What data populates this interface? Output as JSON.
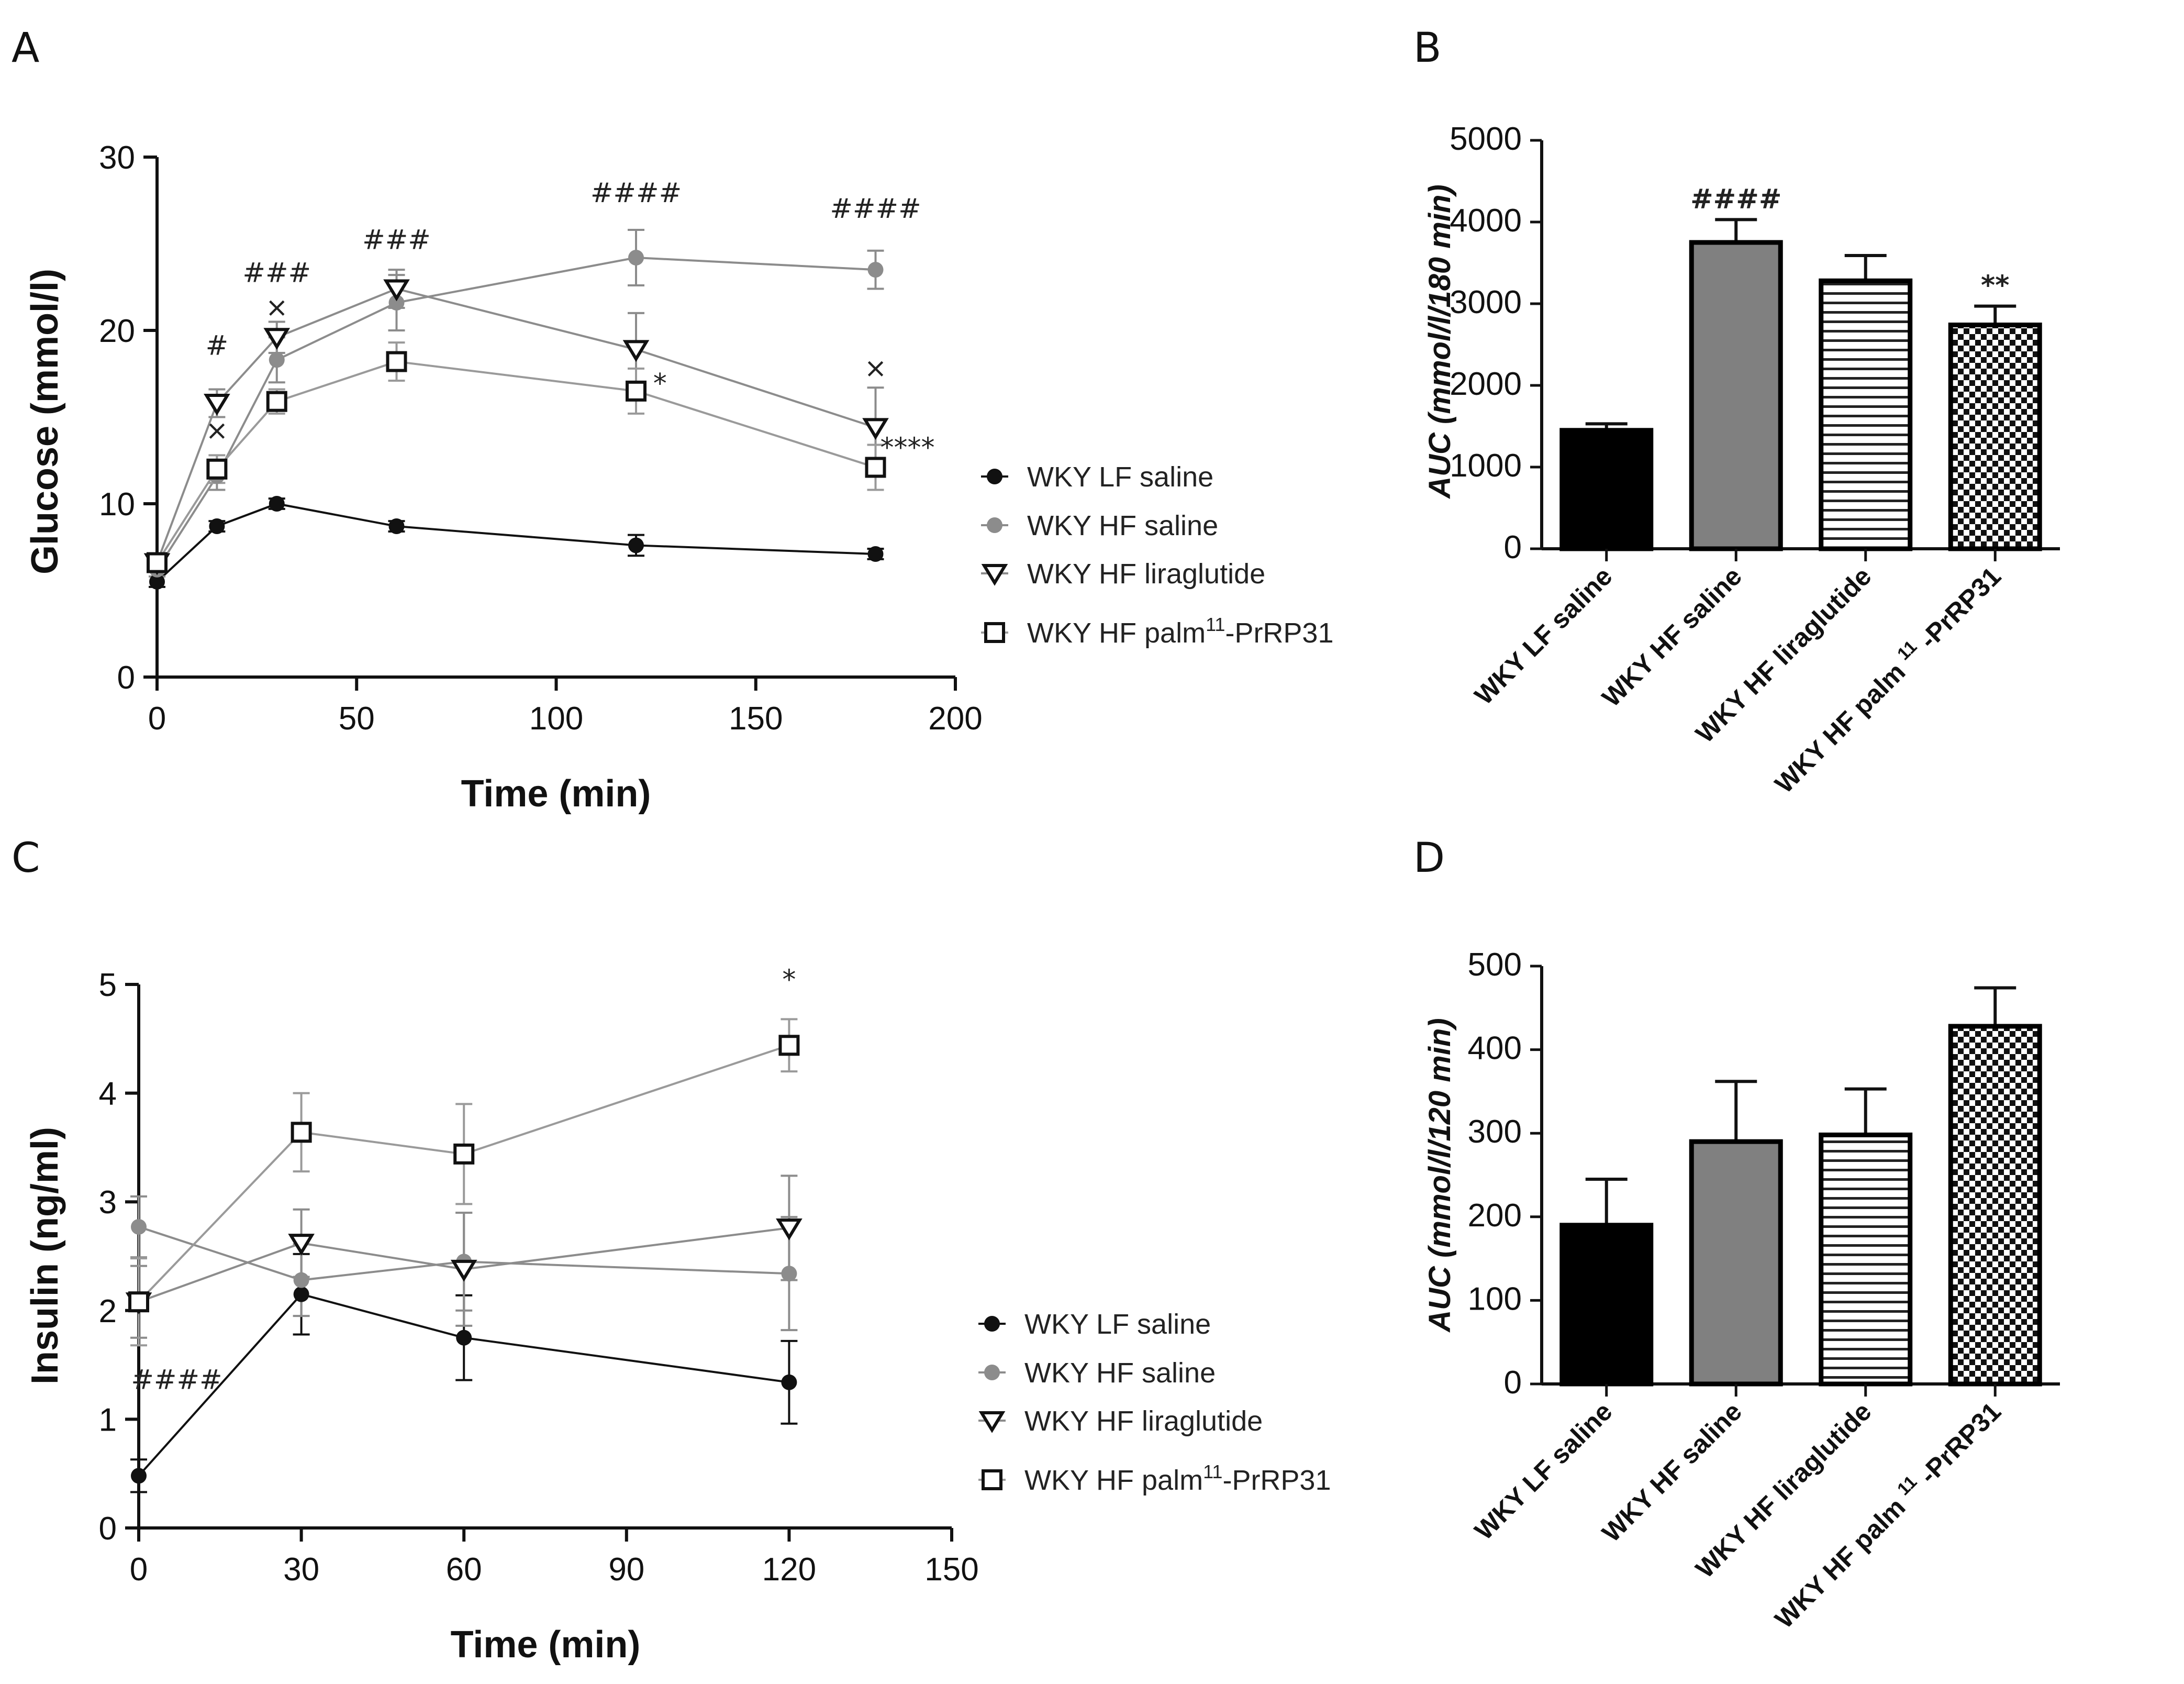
{
  "figure": {
    "panels": {
      "A": "A",
      "B": "B",
      "C": "C",
      "D": "D"
    }
  },
  "legend": {
    "lf_saline": "WKY LF saline",
    "hf_saline": "WKY HF saline",
    "hf_liraglutide": "WKY HF liraglutide",
    "hf_palm_prefix": "WKY HF palm",
    "hf_palm_sup": "11",
    "hf_palm_suffix": "-PrRP31"
  },
  "chart_data": [
    {
      "id": "A",
      "type": "line",
      "xlabel": "Time (min)",
      "ylabel": "Glucose (mmol/l)",
      "xlim": [
        0,
        200
      ],
      "ylim": [
        0,
        30
      ],
      "xticks": [
        0,
        50,
        100,
        150,
        200
      ],
      "yticks": [
        0,
        10,
        20,
        30
      ],
      "x": [
        0,
        15,
        30,
        60,
        120,
        180
      ],
      "series": [
        {
          "key": "lf_saline",
          "marker": "circle-filled",
          "color": "#111111",
          "values": [
            5.5,
            8.7,
            10.0,
            8.7,
            7.6,
            7.1
          ],
          "err": [
            0.3,
            0.3,
            0.3,
            0.3,
            0.6,
            0.3
          ]
        },
        {
          "key": "hf_saline",
          "marker": "circle-filled",
          "color": "#8c8c8c",
          "values": [
            6.2,
            11.6,
            18.3,
            21.6,
            24.2,
            23.5
          ],
          "err": [
            0.4,
            0.8,
            1.3,
            1.6,
            1.6,
            1.1
          ]
        },
        {
          "key": "hf_liraglutide",
          "marker": "triangle-down",
          "color": "#111111",
          "values": [
            6.6,
            15.8,
            19.6,
            22.4,
            18.9,
            14.4
          ],
          "err": [
            0.4,
            0.8,
            0.9,
            1.1,
            2.1,
            2.3
          ]
        },
        {
          "key": "hf_palm",
          "marker": "square",
          "color": "#111111",
          "values": [
            6.6,
            12.0,
            15.9,
            18.2,
            16.5,
            12.1
          ],
          "err": [
            0.4,
            0.8,
            0.7,
            1.1,
            1.3,
            1.3
          ]
        }
      ],
      "annotations": [
        {
          "text": "#",
          "x": 15,
          "y": 18.6
        },
        {
          "text": "×",
          "x": 15,
          "y": 13.7
        },
        {
          "text": "###",
          "x": 30,
          "y": 22.8
        },
        {
          "text": "×",
          "x": 30,
          "y": 20.8
        },
        {
          "text": "###",
          "x": 60,
          "y": 24.7
        },
        {
          "text": "####",
          "x": 120,
          "y": 27.4
        },
        {
          "text": "*",
          "x": 126,
          "y": 16.4
        },
        {
          "text": "####",
          "x": 180,
          "y": 26.5
        },
        {
          "text": "×",
          "x": 180,
          "y": 17.3
        },
        {
          "text": "****",
          "x": 188,
          "y": 12.7
        }
      ]
    },
    {
      "id": "B",
      "type": "bar",
      "ylabel": "AUC (mmol/l/180 min)",
      "ylim": [
        0,
        5000
      ],
      "yticks": [
        0,
        1000,
        2000,
        3000,
        4000,
        5000
      ],
      "categories": [
        "WKY LF saline",
        "WKY HF saline",
        "WKY HF liraglutide",
        "WKY HF palm^11-PrRP31"
      ],
      "values": [
        1450,
        3750,
        3280,
        2740
      ],
      "err": [
        80,
        280,
        310,
        230
      ],
      "fills": [
        "solid-black",
        "solid-gray",
        "horizontal-stripes",
        "checkerboard"
      ],
      "annotations": [
        {
          "index": 1,
          "text": "####"
        },
        {
          "index": 3,
          "text": "**"
        }
      ]
    },
    {
      "id": "C",
      "type": "line",
      "xlabel": "Time (min)",
      "ylabel": "Insulin (ng/ml)",
      "xlim": [
        0,
        150
      ],
      "ylim": [
        0,
        5
      ],
      "xticks": [
        0,
        30,
        60,
        90,
        120,
        150
      ],
      "yticks": [
        0,
        1,
        2,
        3,
        4,
        5
      ],
      "x": [
        0,
        30,
        60,
        120
      ],
      "series": [
        {
          "key": "lf_saline",
          "marker": "circle-filled",
          "color": "#111111",
          "values": [
            0.48,
            2.15,
            1.75,
            1.34
          ],
          "err": [
            0.15,
            0.37,
            0.39,
            0.38
          ]
        },
        {
          "key": "hf_saline",
          "marker": "circle-filled",
          "color": "#8c8c8c",
          "values": [
            2.77,
            2.28,
            2.45,
            2.34
          ],
          "err": [
            0.28,
            0.33,
            0.45,
            0.52
          ]
        },
        {
          "key": "hf_liraglutide",
          "marker": "triangle-down",
          "color": "#111111",
          "values": [
            2.08,
            2.62,
            2.38,
            2.76
          ],
          "err": [
            0.33,
            0.31,
            0.52,
            0.48
          ]
        },
        {
          "key": "hf_palm",
          "marker": "square",
          "color": "#111111",
          "values": [
            2.08,
            3.64,
            3.44,
            4.44
          ],
          "err": [
            0.4,
            0.36,
            0.46,
            0.24
          ]
        }
      ],
      "annotations": [
        {
          "text": "####",
          "x": 7,
          "y": 1.28
        },
        {
          "text": "*",
          "x": 120,
          "y": 4.96
        }
      ]
    },
    {
      "id": "D",
      "type": "bar",
      "ylabel": "AUC (mmol/l/120 min)",
      "ylim": [
        0,
        500
      ],
      "yticks": [
        0,
        100,
        200,
        300,
        400,
        500
      ],
      "categories": [
        "WKY LF saline",
        "WKY HF saline",
        "WKY HF liraglutide",
        "WKY HF palm^11-PrRP31"
      ],
      "values": [
        190,
        290,
        298,
        428
      ],
      "err": [
        55,
        72,
        55,
        46
      ],
      "fills": [
        "solid-black",
        "solid-gray",
        "horizontal-stripes",
        "checkerboard"
      ],
      "annotations": []
    }
  ]
}
